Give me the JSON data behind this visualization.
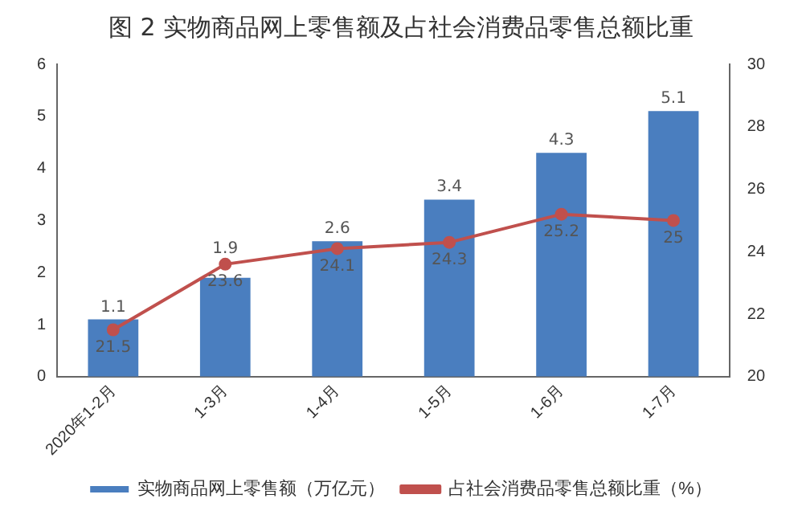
{
  "chart_data": {
    "type": "bar",
    "title": "图 2  实物商品网上零售额及占社会消费品零售总额比重",
    "categories": [
      "2020年1-2月",
      "1-3月",
      "1-4月",
      "1-5月",
      "1-6月",
      "1-7月"
    ],
    "series": [
      {
        "name": "实物商品网上零售额（万亿元）",
        "color": "#4a7ebf",
        "values": [
          1.1,
          1.9,
          2.6,
          3.4,
          4.3,
          5.1
        ]
      },
      {
        "name": "占社会消费品零售总额比重（%）",
        "type": "line",
        "axis": "y2",
        "color": "#c0504d",
        "values": [
          21.5,
          23.6,
          24.1,
          24.3,
          25.2,
          25.0
        ]
      }
    ],
    "ylim": [
      0,
      6
    ],
    "yticks": [
      0,
      1,
      2,
      3,
      4,
      5,
      6
    ],
    "y2lim": [
      20,
      30
    ],
    "y2ticks": [
      20,
      22,
      24,
      26,
      28,
      30
    ],
    "data_labels": true,
    "grid": false,
    "legend": "bottom",
    "marker": "circle"
  }
}
